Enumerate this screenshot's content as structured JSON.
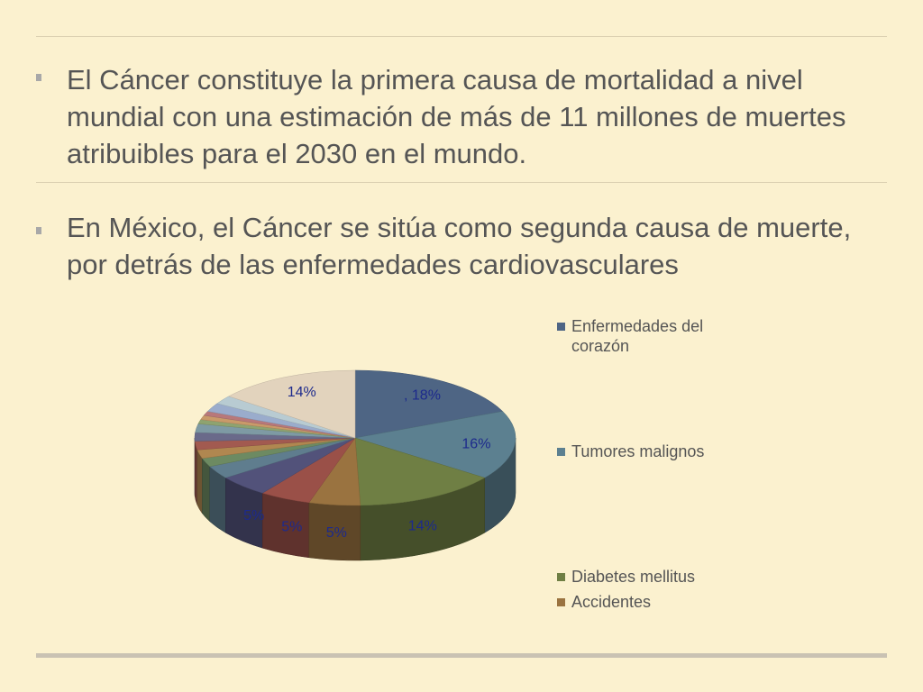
{
  "slide": {
    "bullets": [
      "El Cáncer constituye la primera causa de mortalidad a nivel mundial con una estimación  de más  de 11 millones de muertes atribuibles para el 2030 en el mundo.",
      "En México, el Cáncer se sitúa como segunda causa de muerte, por detrás de las enfermedades cardiovasculares"
    ]
  },
  "chart_data": {
    "type": "pie",
    "title": "",
    "categories": [
      "Enfermedades del corazón",
      "Tumores malignos",
      "Diabetes mellitus",
      "Accidentes",
      "",
      "",
      "",
      "",
      "",
      "",
      "",
      "",
      "",
      "",
      "",
      "",
      "",
      ""
    ],
    "values": [
      18,
      16,
      14,
      5,
      5,
      5,
      3,
      2,
      2,
      2,
      2,
      2,
      1,
      1,
      1,
      2,
      2,
      14
    ],
    "data_labels": [
      ", 18%",
      "16%",
      "14%",
      "5%",
      "5%",
      "5%",
      "",
      "",
      "",
      "",
      "",
      "",
      "",
      "",
      "",
      "",
      "",
      "14%"
    ],
    "colors": [
      "#4e6584",
      "#5c8090",
      "#6f7f44",
      "#9a7340",
      "#9a5048",
      "#52527a",
      "#5f7d8e",
      "#6d8a62",
      "#b08750",
      "#a25a50",
      "#6a6a8a",
      "#7e9aa4",
      "#8ea370",
      "#c99a6a",
      "#b8787a",
      "#9aaccc",
      "#b8cbd2",
      "#e2d3bd"
    ],
    "legend": [
      "Enfermedades del corazón",
      "Tumores malignos",
      "Diabetes mellitus",
      "Accidentes"
    ],
    "legend_position": "right",
    "label_color": "#1d2a8c"
  }
}
